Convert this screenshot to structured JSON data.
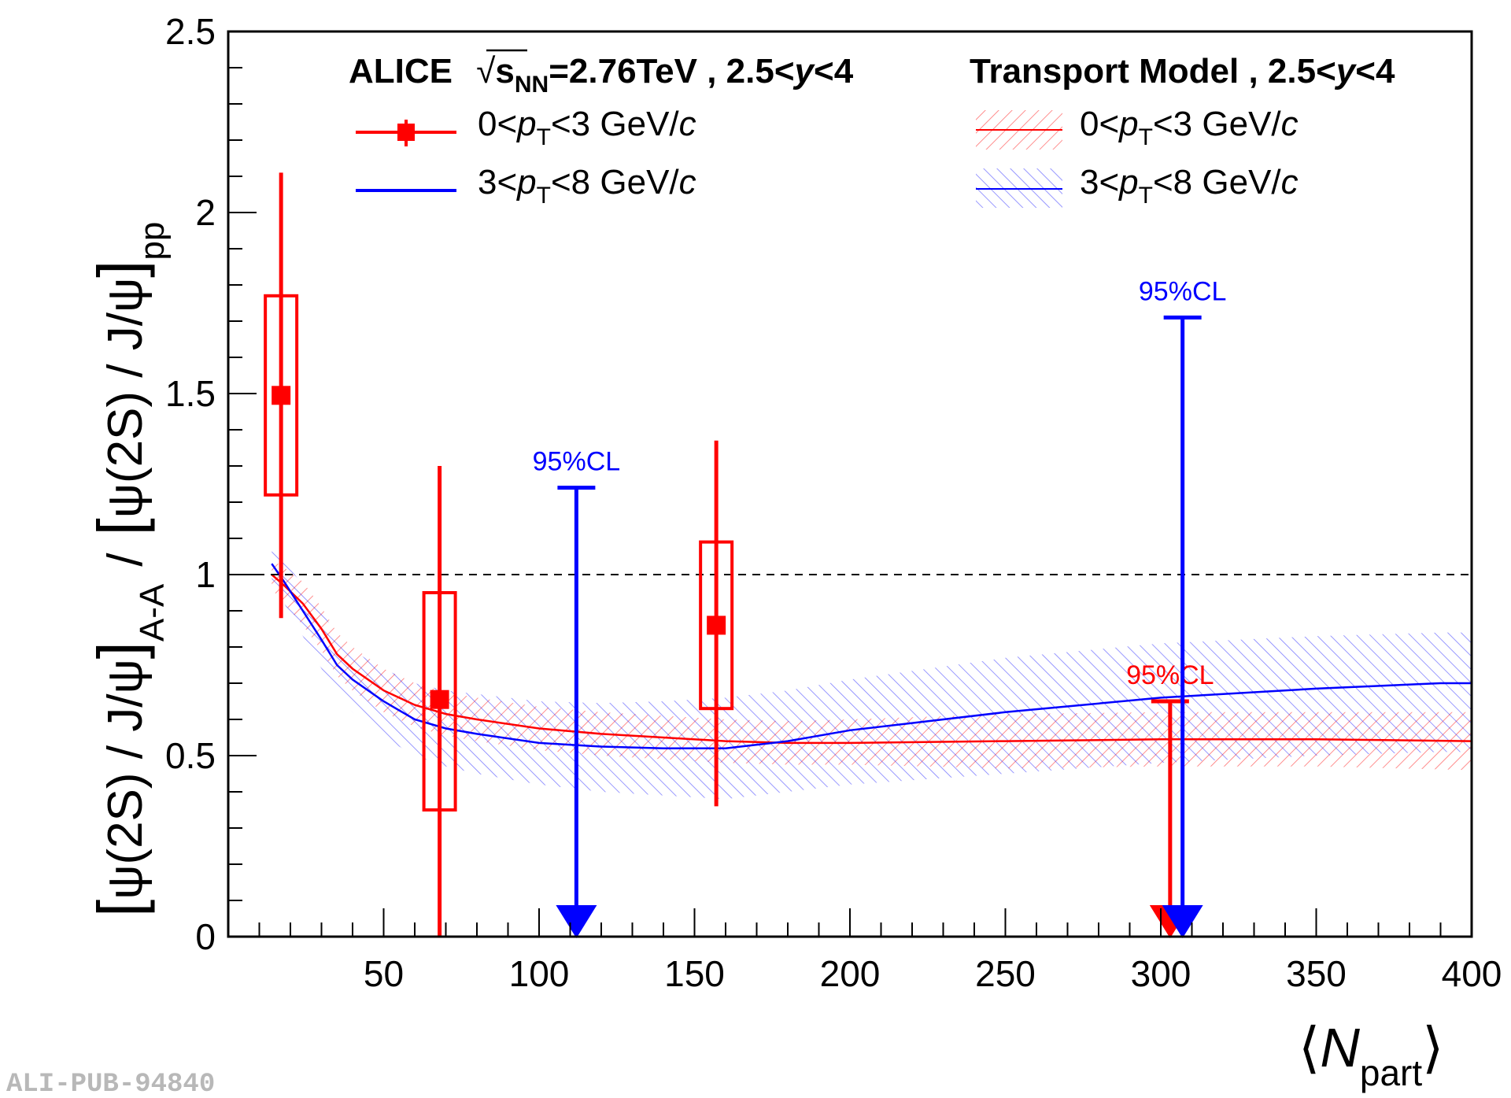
{
  "watermark": "ALI-PUB-94840",
  "colors": {
    "red": "#ff0000",
    "blue": "#0000ff",
    "black": "#000000"
  },
  "chart_data": {
    "type": "scatter",
    "title": "",
    "xlabel": {
      "open": "⟨",
      "main": "N",
      "sub": "part",
      "close": "⟩"
    },
    "ylabel": {
      "lbr1": "[",
      "num1": "ψ(2S) / J/ψ",
      "rbr1": "]",
      "sub1": "A-A",
      "slash": "/",
      "lbr2": "[",
      "num2": "ψ(2S) / J/ψ",
      "rbr2": "]",
      "sub2": "pp"
    },
    "xlim": [
      0,
      400
    ],
    "ylim": [
      0,
      2.5
    ],
    "x_ticks": [
      {
        "value": 50,
        "label": "50"
      },
      {
        "value": 100,
        "label": "100"
      },
      {
        "value": 150,
        "label": "150"
      },
      {
        "value": 200,
        "label": "200"
      },
      {
        "value": 250,
        "label": "250"
      },
      {
        "value": 300,
        "label": "300"
      },
      {
        "value": 350,
        "label": "350"
      },
      {
        "value": 400,
        "label": "400"
      }
    ],
    "y_ticks": [
      {
        "value": 0,
        "label": "0"
      },
      {
        "value": 0.5,
        "label": "0.5"
      },
      {
        "value": 1,
        "label": "1"
      },
      {
        "value": 1.5,
        "label": "1.5"
      },
      {
        "value": 2,
        "label": "2"
      },
      {
        "value": 2.5,
        "label": "2.5"
      }
    ],
    "reference_line": {
      "y": 1
    },
    "legend": {
      "left_header": {
        "alice": "ALICE",
        "sqrt": "√",
        "s": "s",
        "nn": "NN",
        "energy": "=2.76TeV , 2.5<",
        "y": "y",
        "range_end": "<4"
      },
      "right_header": {
        "model": "Transport Model , 2.5<",
        "y": "y",
        "range_end": "<4"
      },
      "entries": [
        {
          "lead": "0<",
          "p": "p",
          "t": "T",
          "rest": "<3 GeV/",
          "c": "c"
        },
        {
          "lead": "3<",
          "p": "p",
          "t": "T",
          "rest": "<8 GeV/",
          "c": "c"
        }
      ]
    },
    "series": [
      {
        "name": "ALICE 0<pT<3 GeV/c",
        "color": "#ff0000",
        "points": [
          {
            "x": 17,
            "y": 1.495,
            "stat_lo": 0.88,
            "stat_hi": 2.11,
            "sys_lo": 1.22,
            "sys_hi": 1.77
          },
          {
            "x": 68,
            "y": 0.655,
            "stat_lo": 0.0,
            "stat_hi": 1.3,
            "sys_lo": 0.35,
            "sys_hi": 0.95
          },
          {
            "x": 157,
            "y": 0.86,
            "stat_lo": 0.36,
            "stat_hi": 1.37,
            "sys_lo": 0.63,
            "sys_hi": 1.09
          }
        ],
        "upper_limits": [
          {
            "x": 303,
            "y": 0.65,
            "label": "95%CL"
          }
        ]
      },
      {
        "name": "ALICE 3<pT<8 GeV/c",
        "color": "#0000ff",
        "points": [],
        "upper_limits": [
          {
            "x": 112,
            "y": 1.24,
            "label": "95%CL"
          },
          {
            "x": 307,
            "y": 1.71,
            "label": "95%CL"
          }
        ]
      }
    ],
    "model_curves": [
      {
        "name": "Transport Model 0<pT<3 GeV/c",
        "color": "#ff0000",
        "x": [
          14,
          18,
          24,
          30,
          35,
          40,
          50,
          60,
          70,
          80,
          100,
          120,
          140,
          160,
          180,
          200,
          250,
          300,
          350,
          400
        ],
        "y": [
          1.0,
          0.97,
          0.92,
          0.85,
          0.78,
          0.74,
          0.68,
          0.64,
          0.615,
          0.6,
          0.575,
          0.56,
          0.55,
          0.54,
          0.535,
          0.535,
          0.54,
          0.545,
          0.545,
          0.54
        ],
        "band_lo": [
          0.96,
          0.92,
          0.86,
          0.79,
          0.72,
          0.68,
          0.62,
          0.58,
          0.555,
          0.54,
          0.515,
          0.5,
          0.49,
          0.48,
          0.475,
          0.475,
          0.465,
          0.47,
          0.47,
          0.46
        ],
        "band_hi": [
          1.04,
          1.02,
          0.98,
          0.91,
          0.84,
          0.8,
          0.74,
          0.7,
          0.675,
          0.66,
          0.635,
          0.62,
          0.61,
          0.6,
          0.595,
          0.6,
          0.615,
          0.62,
          0.62,
          0.62
        ]
      },
      {
        "name": "Transport Model 3<pT<8 GeV/c",
        "color": "#0000ff",
        "x": [
          14,
          18,
          24,
          30,
          35,
          40,
          50,
          60,
          70,
          80,
          100,
          120,
          140,
          160,
          180,
          200,
          250,
          300,
          350,
          390,
          400
        ],
        "y": [
          1.03,
          0.98,
          0.9,
          0.82,
          0.75,
          0.71,
          0.65,
          0.6,
          0.575,
          0.56,
          0.535,
          0.525,
          0.52,
          0.52,
          0.54,
          0.57,
          0.62,
          0.66,
          0.685,
          0.7,
          0.7
        ],
        "band_lo": [
          0.98,
          0.92,
          0.83,
          0.74,
          0.67,
          0.62,
          0.55,
          0.5,
          0.47,
          0.45,
          0.42,
          0.4,
          0.39,
          0.38,
          0.4,
          0.42,
          0.45,
          0.48,
          0.5,
          0.51,
          0.51
        ],
        "band_hi": [
          1.08,
          1.04,
          0.97,
          0.9,
          0.83,
          0.79,
          0.74,
          0.7,
          0.68,
          0.67,
          0.65,
          0.645,
          0.65,
          0.66,
          0.68,
          0.71,
          0.77,
          0.81,
          0.83,
          0.84,
          0.84
        ]
      }
    ]
  }
}
